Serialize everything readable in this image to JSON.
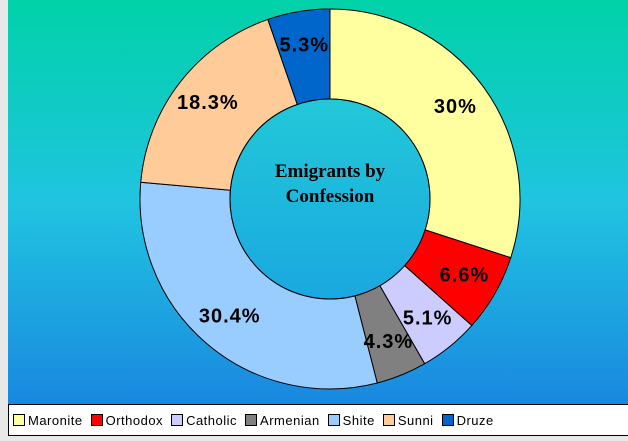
{
  "chart_data": {
    "type": "doughnut",
    "title": "Emigrants by Confession",
    "categories": [
      "Maronite",
      "Orthodox",
      "Catholic",
      "Armenian",
      "Shite",
      "Sunni",
      "Druze"
    ],
    "values": [
      30,
      6.6,
      5.1,
      4.3,
      30.4,
      18.3,
      5.3
    ],
    "value_labels": [
      "30%",
      "6.6%",
      "5.1%",
      "4.3%",
      "30.4%",
      "18.3%",
      "5.3%"
    ],
    "colors": [
      "#ffffa0",
      "#ff0000",
      "#ccccff",
      "#808080",
      "#99ccff",
      "#ffcc99",
      "#0066cc"
    ],
    "legend": "bottom"
  }
}
